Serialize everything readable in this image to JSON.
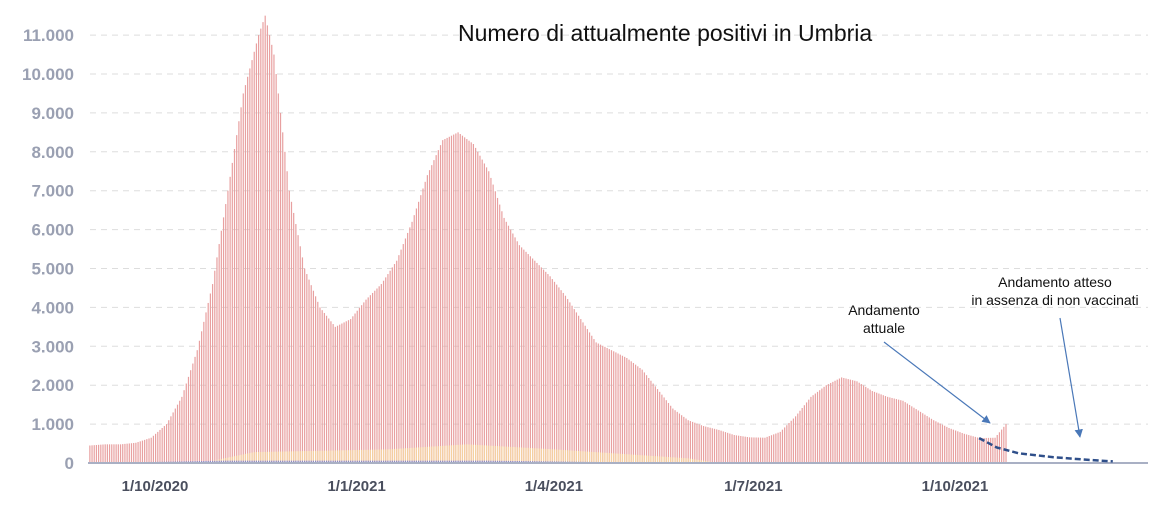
{
  "chart_data": {
    "type": "bar",
    "title": "Numero di attualmente positivi in Umbria",
    "xlabel": "",
    "ylabel": "",
    "ylim": [
      0,
      11500
    ],
    "y_ticks": [
      "0",
      "1.000",
      "2.000",
      "3.000",
      "4.000",
      "5.000",
      "6.000",
      "7.000",
      "8.000",
      "9.000",
      "10.000",
      "11.000"
    ],
    "x_ticks": [
      {
        "date": "2020-10-01",
        "label": "1/10/2020"
      },
      {
        "date": "2021-01-01",
        "label": "1/1/2021"
      },
      {
        "date": "2021-04-01",
        "label": "1/4/2021"
      },
      {
        "date": "2021-07-01",
        "label": "1/7/2021"
      },
      {
        "date": "2021-10-01",
        "label": "1/10/2021"
      }
    ],
    "grid": "horizontal dashed",
    "colors": {
      "bars": "#e8a0a0",
      "bars_secondary": "#f5d0a0",
      "bars_tertiary": "#8888c8",
      "projection": "#2f4f8a",
      "arrow": "#4a78b8",
      "grid": "#dddddd"
    },
    "series": [
      {
        "values_note": "",
        "points": [
          [
            "2020-09-01",
            450
          ],
          [
            "2020-09-08",
            480
          ],
          [
            "2020-09-15",
            480
          ],
          [
            "2020-09-22",
            520
          ],
          [
            "2020-09-29",
            650
          ],
          [
            "2020-10-06",
            1000
          ],
          [
            "2020-10-13",
            1700
          ],
          [
            "2020-10-20",
            2900
          ],
          [
            "2020-10-27",
            4600
          ],
          [
            "2020-11-03",
            7000
          ],
          [
            "2020-11-10",
            9500
          ],
          [
            "2020-11-17",
            11000
          ],
          [
            "2020-11-20",
            11500
          ],
          [
            "2020-11-24",
            10500
          ],
          [
            "2020-12-01",
            7000
          ],
          [
            "2020-12-08",
            5000
          ],
          [
            "2020-12-15",
            4000
          ],
          [
            "2020-12-22",
            3500
          ],
          [
            "2020-12-29",
            3700
          ],
          [
            "2021-01-05",
            4200
          ],
          [
            "2021-01-12",
            4600
          ],
          [
            "2021-01-19",
            5200
          ],
          [
            "2021-01-26",
            6200
          ],
          [
            "2021-02-02",
            7400
          ],
          [
            "2021-02-09",
            8300
          ],
          [
            "2021-02-16",
            8500
          ],
          [
            "2021-02-23",
            8200
          ],
          [
            "2021-03-02",
            7500
          ],
          [
            "2021-03-09",
            6300
          ],
          [
            "2021-03-16",
            5600
          ],
          [
            "2021-03-23",
            5200
          ],
          [
            "2021-03-30",
            4800
          ],
          [
            "2021-04-06",
            4300
          ],
          [
            "2021-04-13",
            3700
          ],
          [
            "2021-04-20",
            3100
          ],
          [
            "2021-04-27",
            2900
          ],
          [
            "2021-05-04",
            2700
          ],
          [
            "2021-05-11",
            2400
          ],
          [
            "2021-05-18",
            1900
          ],
          [
            "2021-05-25",
            1400
          ],
          [
            "2021-06-01",
            1100
          ],
          [
            "2021-06-08",
            950
          ],
          [
            "2021-06-15",
            850
          ],
          [
            "2021-06-22",
            720
          ],
          [
            "2021-06-29",
            660
          ],
          [
            "2021-07-06",
            650
          ],
          [
            "2021-07-13",
            800
          ],
          [
            "2021-07-20",
            1200
          ],
          [
            "2021-07-27",
            1700
          ],
          [
            "2021-08-03",
            2000
          ],
          [
            "2021-08-10",
            2200
          ],
          [
            "2021-08-17",
            2100
          ],
          [
            "2021-08-24",
            1850
          ],
          [
            "2021-08-31",
            1700
          ],
          [
            "2021-09-07",
            1600
          ],
          [
            "2021-09-14",
            1350
          ],
          [
            "2021-09-21",
            1100
          ],
          [
            "2021-09-28",
            900
          ],
          [
            "2021-10-05",
            750
          ],
          [
            "2021-10-12",
            640
          ],
          [
            "2021-10-19",
            650
          ],
          [
            "2021-10-24",
            1000
          ]
        ]
      },
      {
        "points": [
          [
            "2020-10-22",
            0
          ],
          [
            "2020-11-15",
            280
          ],
          [
            "2021-01-15",
            350
          ],
          [
            "2021-02-20",
            480
          ],
          [
            "2021-04-01",
            350
          ],
          [
            "2021-06-01",
            120
          ],
          [
            "2021-06-15",
            0
          ]
        ]
      },
      {
        "points": [
          [
            "2020-09-01",
            0
          ],
          [
            "2020-11-01",
            60
          ],
          [
            "2021-03-01",
            60
          ],
          [
            "2021-05-01",
            20
          ],
          [
            "2021-06-01",
            0
          ]
        ]
      }
    ],
    "projection": [
      [
        "2021-10-12",
        640
      ],
      [
        "2021-10-20",
        400
      ],
      [
        "2021-10-30",
        250
      ],
      [
        "2021-11-15",
        150
      ],
      [
        "2021-12-01",
        80
      ],
      [
        "2021-12-12",
        40
      ]
    ],
    "annotations": [
      {
        "lines": [
          "Andamento",
          "attuale"
        ]
      },
      {
        "lines": [
          "Andamento atteso",
          "in assenza di non vaccinati"
        ]
      }
    ]
  }
}
